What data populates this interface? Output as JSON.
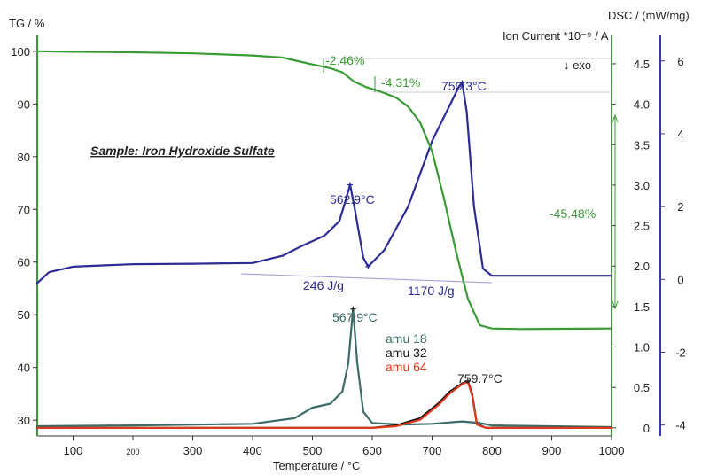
{
  "chart_data": {
    "type": "line",
    "title": "Sample: Iron Hydroxide Sulfate",
    "xlabel": "Temperature / °C",
    "ylabel_left": "TG / %",
    "ylabel_right_1": "Ion Current *10⁻⁹ / A",
    "ylabel_right_2": "DSC / (mW/mg)",
    "exo_label": "↓ exo",
    "xlim": [
      40,
      1000
    ],
    "ylim_left": [
      27,
      103
    ],
    "ylim_ion": [
      -0.1,
      4.85
    ],
    "ylim_dsc": [
      -4.3,
      6.7
    ],
    "x_ticks": [
      "100",
      "200",
      "300",
      "400",
      "500",
      "600",
      "700",
      "800",
      "900",
      "1000"
    ],
    "y_ticks_left": [
      "30",
      "40",
      "50",
      "60",
      "70",
      "80",
      "90",
      "100"
    ],
    "y_ticks_ion": [
      "0",
      "0.5",
      "1.0",
      "1.5",
      "2.0",
      "2.5",
      "3.0",
      "3.5",
      "4.0",
      "4.5"
    ],
    "y_ticks_dsc": [
      "-4",
      "-2",
      "0",
      "2",
      "4",
      "6"
    ],
    "colors": {
      "tg": "#3a9a35",
      "dsc": "#2b2b96",
      "amu18": "#3d6b66",
      "amu32": "#111111",
      "amu64": "#e03a1e",
      "annotation_tg": "#3a9a35"
    },
    "series": [
      {
        "name": "amu 18",
        "axis": "ion",
        "x": [
          40,
          200,
          400,
          470,
          500,
          530,
          550,
          560,
          567.9,
          575,
          585,
          600,
          650,
          700,
          750,
          780,
          800,
          1000
        ],
        "y": [
          0.02,
          0.03,
          0.05,
          0.12,
          0.25,
          0.3,
          0.45,
          0.8,
          1.47,
          0.8,
          0.2,
          0.06,
          0.04,
          0.05,
          0.08,
          0.06,
          0.03,
          0.01
        ]
      },
      {
        "name": "amu 32",
        "axis": "ion",
        "x": [
          40,
          600,
          640,
          680,
          710,
          730,
          750,
          759.7,
          767,
          775,
          790,
          1000
        ],
        "y": [
          0.0,
          0.0,
          0.03,
          0.12,
          0.3,
          0.45,
          0.55,
          0.58,
          0.42,
          0.05,
          0.0,
          0.0
        ]
      },
      {
        "name": "amu 64",
        "axis": "ion",
        "x": [
          40,
          600,
          640,
          680,
          710,
          730,
          750,
          759.7,
          767,
          775,
          790,
          1000
        ],
        "y": [
          0.0,
          0.0,
          0.02,
          0.1,
          0.28,
          0.43,
          0.54,
          0.57,
          0.4,
          0.04,
          0.0,
          0.0
        ]
      },
      {
        "name": "DSC",
        "axis": "dsc",
        "x": [
          40,
          60,
          100,
          200,
          300,
          400,
          450,
          480,
          520,
          545,
          556,
          562.9,
          570,
          585,
          593,
          620,
          660,
          700,
          730,
          745,
          750.3,
          758,
          770,
          785,
          800,
          1000
        ],
        "y": [
          -0.1,
          0.2,
          0.35,
          0.42,
          0.43,
          0.45,
          0.65,
          0.9,
          1.2,
          1.6,
          2.2,
          2.6,
          2.0,
          0.6,
          0.35,
          0.8,
          2.0,
          3.8,
          4.8,
          5.3,
          5.4,
          4.6,
          2.0,
          0.3,
          0.1,
          0.1
        ]
      },
      {
        "name": "TG",
        "axis": "tg",
        "x": [
          40,
          100,
          200,
          300,
          400,
          450,
          500,
          530,
          550,
          570,
          590,
          610,
          640,
          660,
          680,
          700,
          720,
          740,
          760,
          780,
          800,
          850,
          1000
        ],
        "y": [
          100,
          99.9,
          99.8,
          99.6,
          99.2,
          98.8,
          97.5,
          96.8,
          96.0,
          94.2,
          93.2,
          92.5,
          91.2,
          89.5,
          86.5,
          81.0,
          72.0,
          62.0,
          53.0,
          48.0,
          47.4,
          47.3,
          47.4
        ]
      }
    ],
    "annotations": {
      "tg_step1": "-2.46%",
      "tg_step2": "-4.31%",
      "tg_step3": "-45.48%",
      "dsc_peak1": "562.9°C",
      "dsc_peak2": "750.3°C",
      "dsc_enthalpy1": "246 J/g",
      "dsc_enthalpy2": "1170 J/g",
      "ms_peak1": "567.9°C",
      "ms_peak2": "759.7°C"
    }
  }
}
